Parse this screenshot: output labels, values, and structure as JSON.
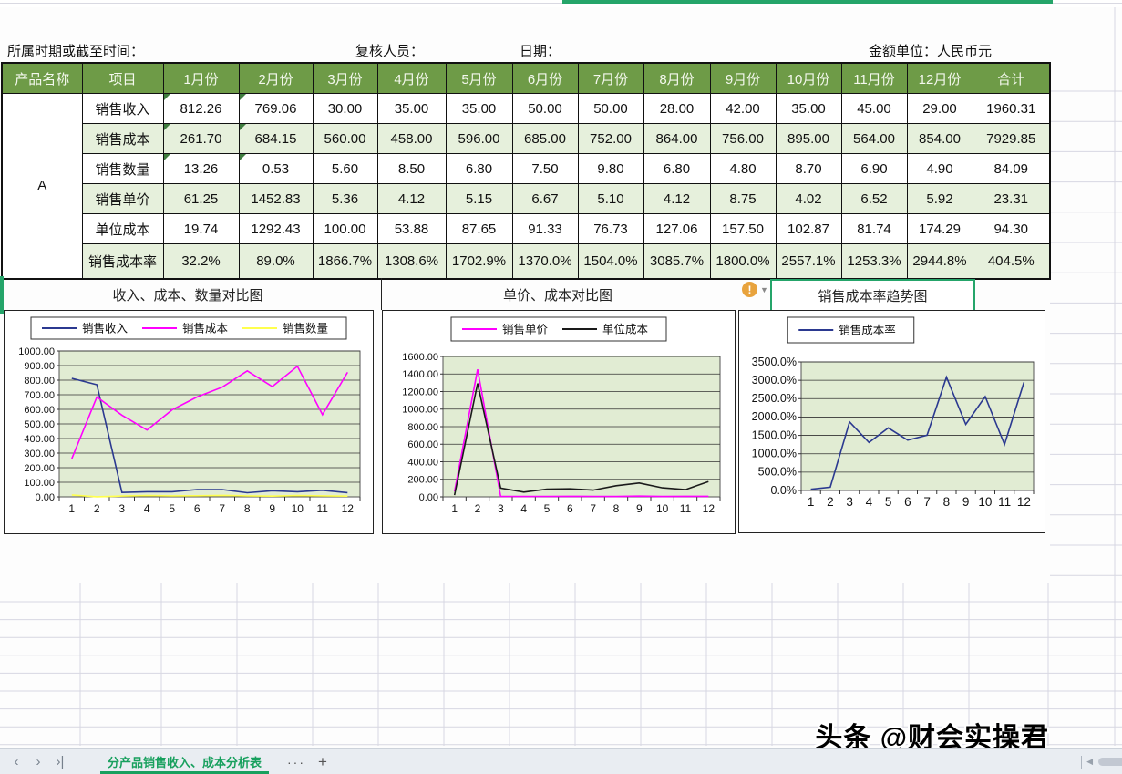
{
  "header": {
    "period_label": "所属时期或截至时间：",
    "reviewer_label": "复核人员：",
    "date_label": "日期：",
    "unit_label": "金额单位：人民币元"
  },
  "table": {
    "col_headers": [
      "产品名称",
      "项目",
      "1月份",
      "2月份",
      "3月份",
      "4月份",
      "5月份",
      "6月份",
      "7月份",
      "8月份",
      "9月份",
      "10月份",
      "11月份",
      "12月份",
      "合计"
    ],
    "product_name": "A",
    "rows": [
      {
        "label": "销售收入",
        "values": [
          "812.26",
          "769.06",
          "30.00",
          "35.00",
          "35.00",
          "50.00",
          "50.00",
          "28.00",
          "42.00",
          "35.00",
          "45.00",
          "29.00",
          "1960.31"
        ]
      },
      {
        "label": "销售成本",
        "values": [
          "261.70",
          "684.15",
          "560.00",
          "458.00",
          "596.00",
          "685.00",
          "752.00",
          "864.00",
          "756.00",
          "895.00",
          "564.00",
          "854.00",
          "7929.85"
        ]
      },
      {
        "label": "销售数量",
        "values": [
          "13.26",
          "0.53",
          "5.60",
          "8.50",
          "6.80",
          "7.50",
          "9.80",
          "6.80",
          "4.80",
          "8.70",
          "6.90",
          "4.90",
          "84.09"
        ]
      },
      {
        "label": "销售单价",
        "values": [
          "61.25",
          "1452.83",
          "5.36",
          "4.12",
          "5.15",
          "6.67",
          "5.10",
          "4.12",
          "8.75",
          "4.02",
          "6.52",
          "5.92",
          "23.31"
        ]
      },
      {
        "label": "单位成本",
        "values": [
          "19.74",
          "1292.43",
          "100.00",
          "53.88",
          "87.65",
          "91.33",
          "76.73",
          "127.06",
          "157.50",
          "102.87",
          "81.74",
          "174.29",
          "94.30"
        ]
      },
      {
        "label": "销售成本率",
        "values": [
          "32.2%",
          "89.0%",
          "1866.7%",
          "1308.6%",
          "1702.9%",
          "1370.0%",
          "1504.0%",
          "3085.7%",
          "1800.0%",
          "2557.1%",
          "1253.3%",
          "2944.8%",
          "404.5%"
        ]
      }
    ]
  },
  "chart_data": [
    {
      "type": "line",
      "title": "收入、成本、数量对比图",
      "x": [
        1,
        2,
        3,
        4,
        5,
        6,
        7,
        8,
        9,
        10,
        11,
        12
      ],
      "series": [
        {
          "name": "销售收入",
          "color": "#2b3990",
          "values": [
            812.26,
            769.06,
            30,
            35,
            35,
            50,
            50,
            28,
            42,
            35,
            45,
            29
          ]
        },
        {
          "name": "销售成本",
          "color": "#ff00ff",
          "values": [
            261.7,
            684.15,
            560,
            458,
            596,
            685,
            752,
            864,
            756,
            895,
            564,
            854
          ]
        },
        {
          "name": "销售数量",
          "color": "#ffff4d",
          "values": [
            13.26,
            0.53,
            5.6,
            8.5,
            6.8,
            7.5,
            9.8,
            6.8,
            4.8,
            8.7,
            6.9,
            4.9
          ]
        }
      ],
      "ylim": [
        0,
        1000
      ],
      "ytick": 100,
      "tick_format": "fixed2",
      "legend_position": "top",
      "grid": true
    },
    {
      "type": "line",
      "title": "单价、成本对比图",
      "x": [
        1,
        2,
        3,
        4,
        5,
        6,
        7,
        8,
        9,
        10,
        11,
        12
      ],
      "series": [
        {
          "name": "销售单价",
          "color": "#ff00ff",
          "values": [
            61.25,
            1452.83,
            5.36,
            4.12,
            5.15,
            6.67,
            5.1,
            4.12,
            8.75,
            4.02,
            6.52,
            5.92
          ]
        },
        {
          "name": "单位成本",
          "color": "#1a1a1a",
          "values": [
            19.74,
            1292.43,
            100,
            53.88,
            87.65,
            91.33,
            76.73,
            127.06,
            157.5,
            102.87,
            81.74,
            174.29
          ]
        }
      ],
      "ylim": [
        0,
        1600
      ],
      "ytick": 200,
      "tick_format": "fixed2",
      "legend_position": "top",
      "grid": true
    },
    {
      "type": "line",
      "title": "销售成本率趋势图",
      "x": [
        1,
        2,
        3,
        4,
        5,
        6,
        7,
        8,
        9,
        10,
        11,
        12
      ],
      "series": [
        {
          "name": "销售成本率",
          "color": "#2b3990",
          "values": [
            32.2,
            89.0,
            1866.7,
            1308.6,
            1702.9,
            1370.0,
            1504.0,
            3085.7,
            1800.0,
            2557.1,
            1253.3,
            2944.8
          ]
        }
      ],
      "ylim": [
        0,
        3500
      ],
      "ytick": 500,
      "tick_format": "pct1",
      "legend_position": "top",
      "grid": true
    }
  ],
  "annotations": {
    "warning_icon_glyph": "!"
  },
  "sheet_bar": {
    "nav": [
      "‹",
      "›",
      "›|"
    ],
    "active_tab": "分产品销售收入、成本分析表",
    "more_label": "···",
    "add_label": "+"
  },
  "watermark": "头条 @财会实操君",
  "colors": {
    "header_green": "#6e9b47",
    "row_green": "#e6f0dc",
    "plot_bg": "#e1ecd3",
    "accent_teal": "#25a56a",
    "navy": "#2b3990",
    "magenta": "#ff00ff",
    "yellow": "#ffff4d",
    "black_line": "#1a1a1a",
    "warning_orange": "#e8a33d",
    "tab_green": "#18a05e"
  }
}
